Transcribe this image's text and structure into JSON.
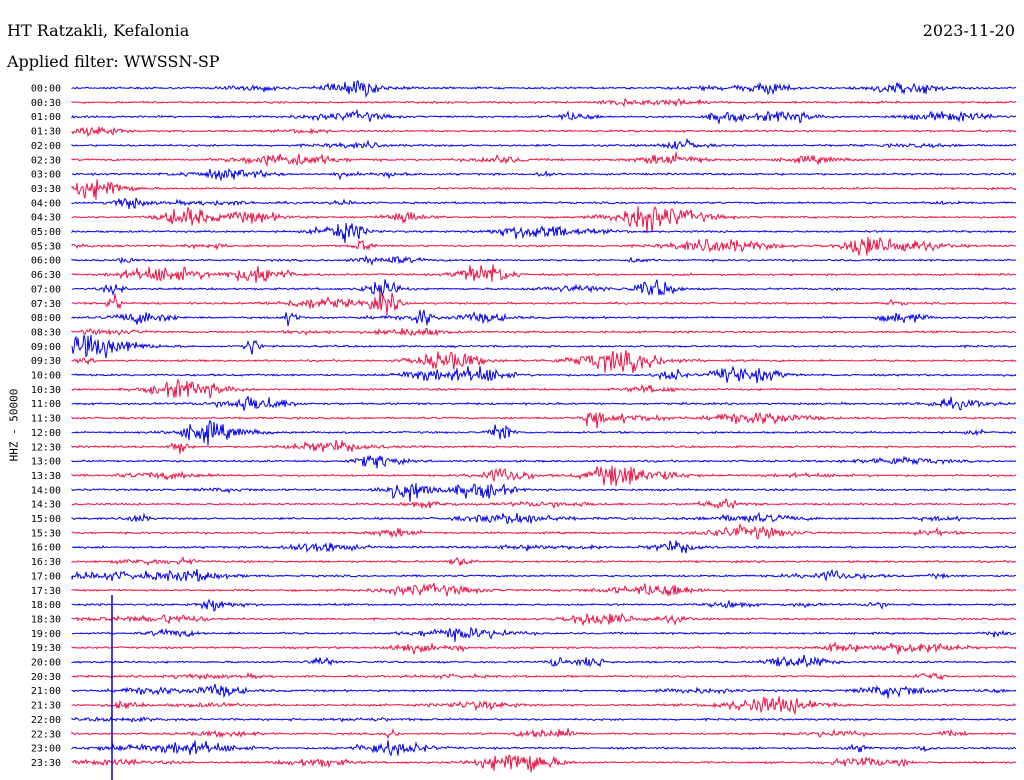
{
  "station": "HT Ratzakli, Kefalonia",
  "date": "2023-11-20",
  "filter_label": "Applied filter: WWSSN-SP",
  "y_axis_label": "HHZ - 50000",
  "colors": {
    "blue": "#0000ee",
    "red": "#ee1144"
  },
  "chart_data": {
    "type": "line",
    "title": "HT Ratzakli, Kefalonia",
    "ylabel": "HHZ - 50000",
    "trace_interval_minutes": 30,
    "color_cycle": [
      "blue",
      "red"
    ],
    "rows": [
      "00:00",
      "00:30",
      "01:00",
      "01:30",
      "02:00",
      "02:30",
      "03:00",
      "03:30",
      "04:00",
      "04:30",
      "05:00",
      "05:30",
      "06:00",
      "06:30",
      "07:00",
      "07:30",
      "08:00",
      "08:30",
      "09:00",
      "09:30",
      "10:00",
      "10:30",
      "11:00",
      "11:30",
      "12:00",
      "12:30",
      "13:00",
      "13:30",
      "14:00",
      "14:30",
      "15:00",
      "15:30",
      "16:00",
      "16:30",
      "17:00",
      "17:30",
      "18:00",
      "18:30",
      "19:00",
      "19:30",
      "20:00",
      "20:30",
      "21:00",
      "21:30",
      "22:00",
      "22:30",
      "23:00",
      "23:30"
    ],
    "grid": false,
    "legend": "none"
  }
}
